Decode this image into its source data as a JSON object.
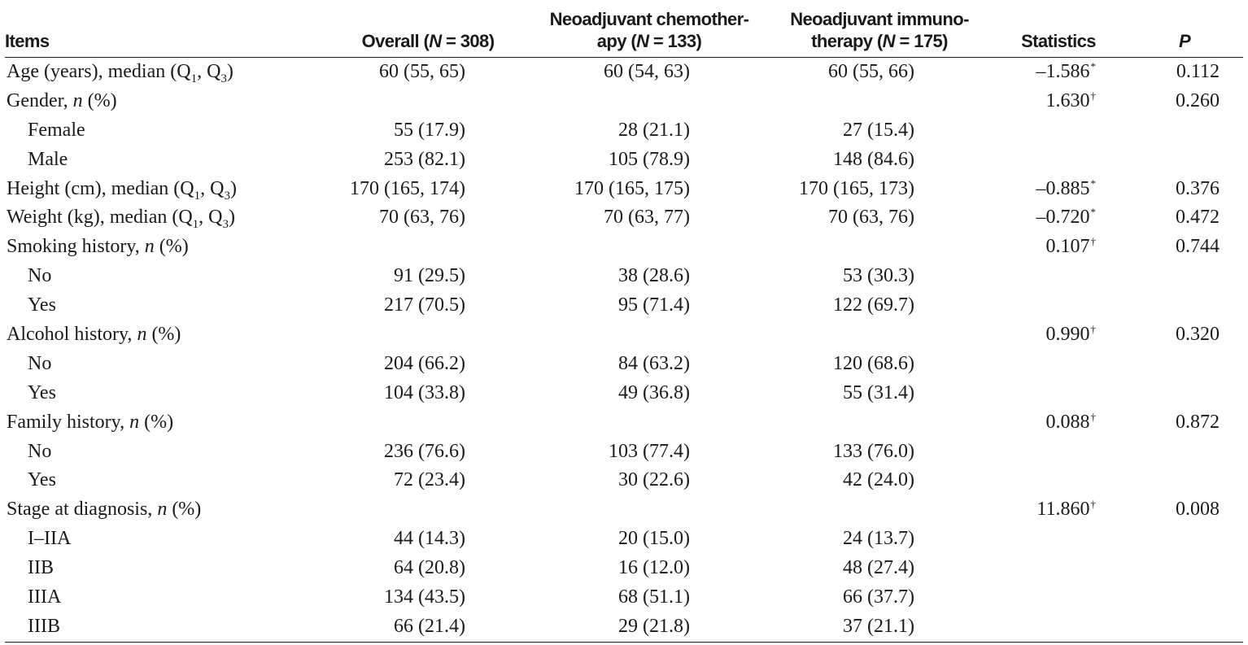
{
  "table": {
    "headers": {
      "items": "Items",
      "overall_line1": "",
      "overall_line2": "Overall (N = 308)",
      "chemo_line1": "Neoadjuvant chemother-",
      "chemo_line2": "apy (N = 133)",
      "immuno_line1": "Neoadjuvant immuno-",
      "immuno_line2": "therapy (N = 175)",
      "statistics": "Statistics",
      "p": "P"
    },
    "rows": [
      {
        "item": "Age (years), median (Q1, Q3)",
        "overall": "60 (55, 65)",
        "chemo": "60 (54, 63)",
        "immuno": "60 (55, 66)",
        "stat": "–1.586",
        "stat_mark": "*",
        "p": "0.112"
      },
      {
        "item": "Gender, n (%)",
        "overall": "",
        "chemo": "",
        "immuno": "",
        "stat": "1.630",
        "stat_mark": "†",
        "p": "0.260"
      },
      {
        "item": "Female",
        "overall": "55 (17.9)",
        "chemo": "28 (21.1)",
        "immuno": "27 (15.4)",
        "stat": "",
        "stat_mark": "",
        "p": ""
      },
      {
        "item": "Male",
        "overall": "253 (82.1)",
        "chemo": "105 (78.9)",
        "immuno": "148 (84.6)",
        "stat": "",
        "stat_mark": "",
        "p": ""
      },
      {
        "item": "Height (cm), median (Q1, Q3)",
        "overall": "170 (165, 174)",
        "chemo": "170 (165, 175)",
        "immuno": "170 (165, 173)",
        "stat": "–0.885",
        "stat_mark": "*",
        "p": "0.376"
      },
      {
        "item": "Weight (kg), median (Q1, Q3)",
        "overall": "70 (63, 76)",
        "chemo": "70 (63, 77)",
        "immuno": "70 (63, 76)",
        "stat": "–0.720",
        "stat_mark": "*",
        "p": "0.472"
      },
      {
        "item": "Smoking history, n (%)",
        "overall": "",
        "chemo": "",
        "immuno": "",
        "stat": "0.107",
        "stat_mark": "†",
        "p": "0.744"
      },
      {
        "item": "No",
        "overall": "91 (29.5)",
        "chemo": "38 (28.6)",
        "immuno": "53 (30.3)",
        "stat": "",
        "stat_mark": "",
        "p": ""
      },
      {
        "item": "Yes",
        "overall": "217 (70.5)",
        "chemo": "95 (71.4)",
        "immuno": "122 (69.7)",
        "stat": "",
        "stat_mark": "",
        "p": ""
      },
      {
        "item": "Alcohol history, n (%)",
        "overall": "",
        "chemo": "",
        "immuno": "",
        "stat": "0.990",
        "stat_mark": "†",
        "p": "0.320"
      },
      {
        "item": "No",
        "overall": "204 (66.2)",
        "chemo": "84 (63.2)",
        "immuno": "120 (68.6)",
        "stat": "",
        "stat_mark": "",
        "p": ""
      },
      {
        "item": "Yes",
        "overall": "104 (33.8)",
        "chemo": "49 (36.8)",
        "immuno": "55 (31.4)",
        "stat": "",
        "stat_mark": "",
        "p": ""
      },
      {
        "item": "Family history, n (%)",
        "overall": "",
        "chemo": "",
        "immuno": "",
        "stat": "0.088",
        "stat_mark": "†",
        "p": "0.872"
      },
      {
        "item": "No",
        "overall": "236 (76.6)",
        "chemo": "103 (77.4)",
        "immuno": "133 (76.0)",
        "stat": "",
        "stat_mark": "",
        "p": ""
      },
      {
        "item": "Yes",
        "overall": "72 (23.4)",
        "chemo": "30 (22.6)",
        "immuno": "42 (24.0)",
        "stat": "",
        "stat_mark": "",
        "p": ""
      },
      {
        "item": "Stage at diagnosis, n (%)",
        "overall": "",
        "chemo": "",
        "immuno": "",
        "stat": "11.860",
        "stat_mark": "†",
        "p": "0.008"
      },
      {
        "item": "I–IIA",
        "overall": "44 (14.3)",
        "chemo": "20 (15.0)",
        "immuno": "24 (13.7)",
        "stat": "",
        "stat_mark": "",
        "p": ""
      },
      {
        "item": "IIB",
        "overall": "64 (20.8)",
        "chemo": "16 (12.0)",
        "immuno": "48 (27.4)",
        "stat": "",
        "stat_mark": "",
        "p": ""
      },
      {
        "item": "IIIA",
        "overall": "134 (43.5)",
        "chemo": "68 (51.1)",
        "immuno": "66 (37.7)",
        "stat": "",
        "stat_mark": "",
        "p": ""
      },
      {
        "item": "IIIB",
        "overall": "66 (21.4)",
        "chemo": "29 (21.8)",
        "immuno": "37 (21.1)",
        "stat": "",
        "stat_mark": "",
        "p": ""
      }
    ]
  }
}
